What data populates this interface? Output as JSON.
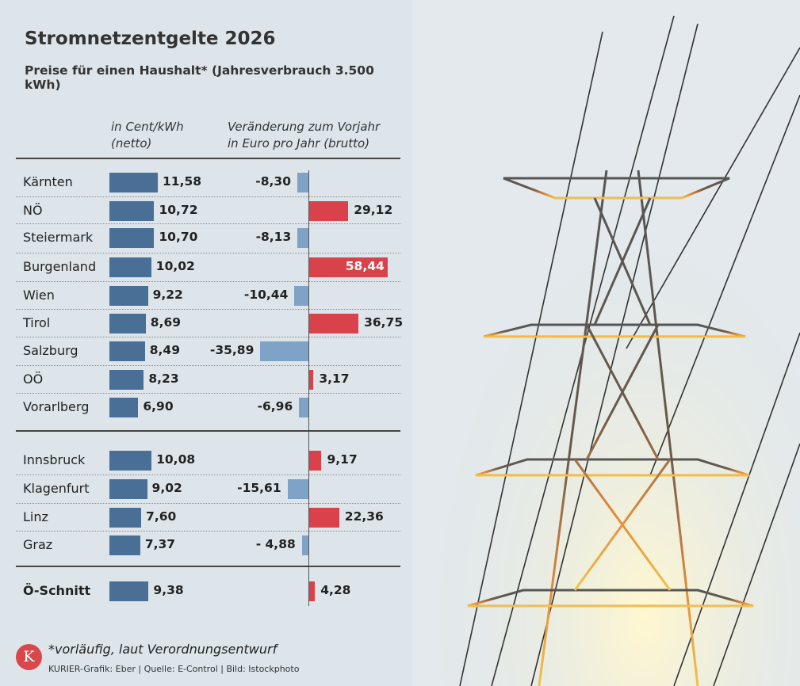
{
  "chart_data": {
    "type": "bar",
    "title": "Stromnetzentgelte 2026",
    "subtitle": "Preise für einen Haushalt* (Jahresverbrauch 3.500 kWh)",
    "column_headers": [
      [
        "in Cent/kWh",
        "(netto)"
      ],
      [
        "Veränderung zum Vorjahr",
        "in Euro pro Jahr (brutto)"
      ]
    ],
    "groups": [
      {
        "rows": [
          {
            "name": "Kärnten",
            "price": "11,58",
            "change": "-8,30",
            "p": 11.58,
            "c": -8.3
          },
          {
            "name": "NÖ",
            "price": "10,72",
            "change": "29,12",
            "p": 10.72,
            "c": 29.12
          },
          {
            "name": "Steiermark",
            "price": "10,70",
            "change": "-8,13",
            "p": 10.7,
            "c": -8.13
          },
          {
            "name": "Burgenland",
            "price": "10,02",
            "change": "58,44",
            "p": 10.02,
            "c": 58.44
          },
          {
            "name": "Wien",
            "price": "9,22",
            "change": "-10,44",
            "p": 9.22,
            "c": -10.44
          },
          {
            "name": "Tirol",
            "price": "8,69",
            "change": "36,75",
            "p": 8.69,
            "c": 36.75
          },
          {
            "name": "Salzburg",
            "price": "8,49",
            "change": "-35,89",
            "p": 8.49,
            "c": -35.89
          },
          {
            "name": "OÖ",
            "price": "8,23",
            "change": "3,17",
            "p": 8.23,
            "c": 3.17
          },
          {
            "name": "Vorarlberg",
            "price": "6,90",
            "change": "-6,96",
            "p": 6.9,
            "c": -6.96
          }
        ]
      },
      {
        "rows": [
          {
            "name": "Innsbruck",
            "price": "10,08",
            "change": "9,17",
            "p": 10.08,
            "c": 9.17
          },
          {
            "name": "Klagenfurt",
            "price": "9,02",
            "change": "-15,61",
            "p": 9.02,
            "c": -15.61
          },
          {
            "name": "Linz",
            "price": "7,60",
            "change": "22,36",
            "p": 7.6,
            "c": 22.36
          },
          {
            "name": "Graz",
            "price": "7,37",
            "change": "- 4,88",
            "p": 7.37,
            "c": -4.88
          }
        ]
      },
      {
        "rows": [
          {
            "name": "Ö-Schnitt",
            "price": "9,38",
            "change": "4,28",
            "p": 9.38,
            "c": 4.28,
            "bold": true
          }
        ]
      }
    ],
    "colors": {
      "price": "#4a6f97",
      "increase": "#d9424a",
      "decrease": "#7fa3c6"
    }
  },
  "footer": {
    "logo": "K",
    "note": "*vorläufig, laut Verordnungsentwurf",
    "credit": "KURIER-Grafik: Eber | Quelle: E-Control | Bild: Istockphoto"
  }
}
